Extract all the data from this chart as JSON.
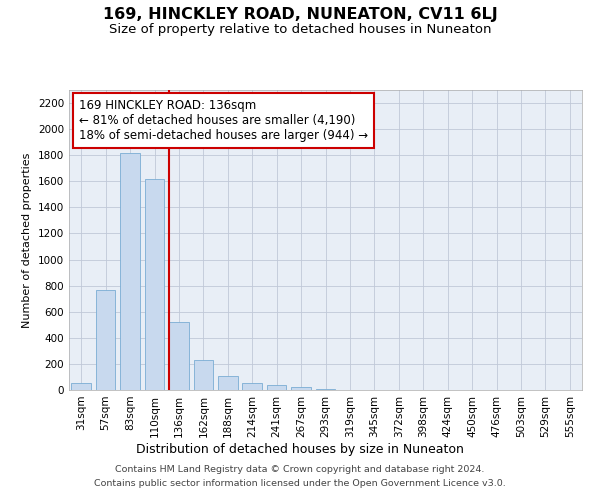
{
  "title": "169, HINCKLEY ROAD, NUNEATON, CV11 6LJ",
  "subtitle": "Size of property relative to detached houses in Nuneaton",
  "xlabel": "Distribution of detached houses by size in Nuneaton",
  "ylabel": "Number of detached properties",
  "categories": [
    "31sqm",
    "57sqm",
    "83sqm",
    "110sqm",
    "136sqm",
    "162sqm",
    "188sqm",
    "214sqm",
    "241sqm",
    "267sqm",
    "293sqm",
    "319sqm",
    "345sqm",
    "372sqm",
    "398sqm",
    "424sqm",
    "450sqm",
    "476sqm",
    "503sqm",
    "529sqm",
    "555sqm"
  ],
  "values": [
    50,
    770,
    1820,
    1620,
    520,
    230,
    110,
    55,
    35,
    20,
    5,
    2,
    1,
    0,
    0,
    0,
    0,
    0,
    0,
    0,
    0
  ],
  "bar_color": "#c8d9ee",
  "bar_edge_color": "#7aadd4",
  "marker_index": 4,
  "vline_color": "#cc0000",
  "annotation_line1": "169 HINCKLEY ROAD: 136sqm",
  "annotation_line2": "← 81% of detached houses are smaller (4,190)",
  "annotation_line3": "18% of semi-detached houses are larger (944) →",
  "annotation_box_color": "#ffffff",
  "annotation_box_edge_color": "#cc0000",
  "ylim": [
    0,
    2300
  ],
  "yticks": [
    0,
    200,
    400,
    600,
    800,
    1000,
    1200,
    1400,
    1600,
    1800,
    2000,
    2200
  ],
  "grid_color": "#c0c8d8",
  "bg_color": "#e8eef6",
  "footer_line1": "Contains HM Land Registry data © Crown copyright and database right 2024.",
  "footer_line2": "Contains public sector information licensed under the Open Government Licence v3.0.",
  "title_fontsize": 11.5,
  "subtitle_fontsize": 9.5,
  "xlabel_fontsize": 9,
  "ylabel_fontsize": 8,
  "tick_fontsize": 7.5,
  "footer_fontsize": 6.8,
  "annotation_fontsize": 8.5
}
